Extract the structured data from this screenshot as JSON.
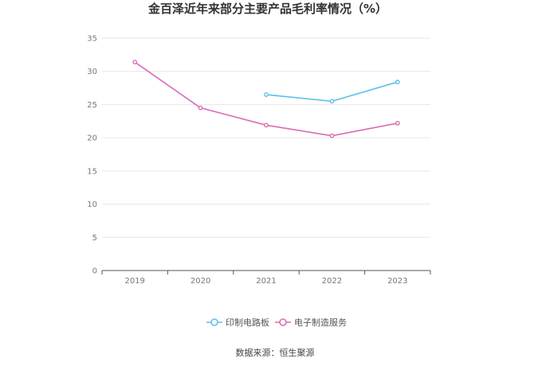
{
  "chart_data": {
    "type": "line",
    "title": "金百泽近年来部分主要产品毛利率情况（%）",
    "xlabel": "",
    "ylabel": "",
    "categories": [
      "2019",
      "2020",
      "2021",
      "2022",
      "2023"
    ],
    "ylim": [
      0,
      35
    ],
    "yticks": [
      0,
      5,
      10,
      15,
      20,
      25,
      30,
      35
    ],
    "grid": true,
    "legend_position": "bottom",
    "series": [
      {
        "name": "印制电路板",
        "color": "#5bc0eb",
        "values": [
          null,
          null,
          26.5,
          25.5,
          28.4
        ]
      },
      {
        "name": "电子制造服务",
        "color": "#d96cb5",
        "values": [
          31.4,
          24.5,
          21.9,
          20.3,
          22.2
        ]
      }
    ]
  },
  "footer": {
    "source": "数据来源：恒生聚源"
  }
}
